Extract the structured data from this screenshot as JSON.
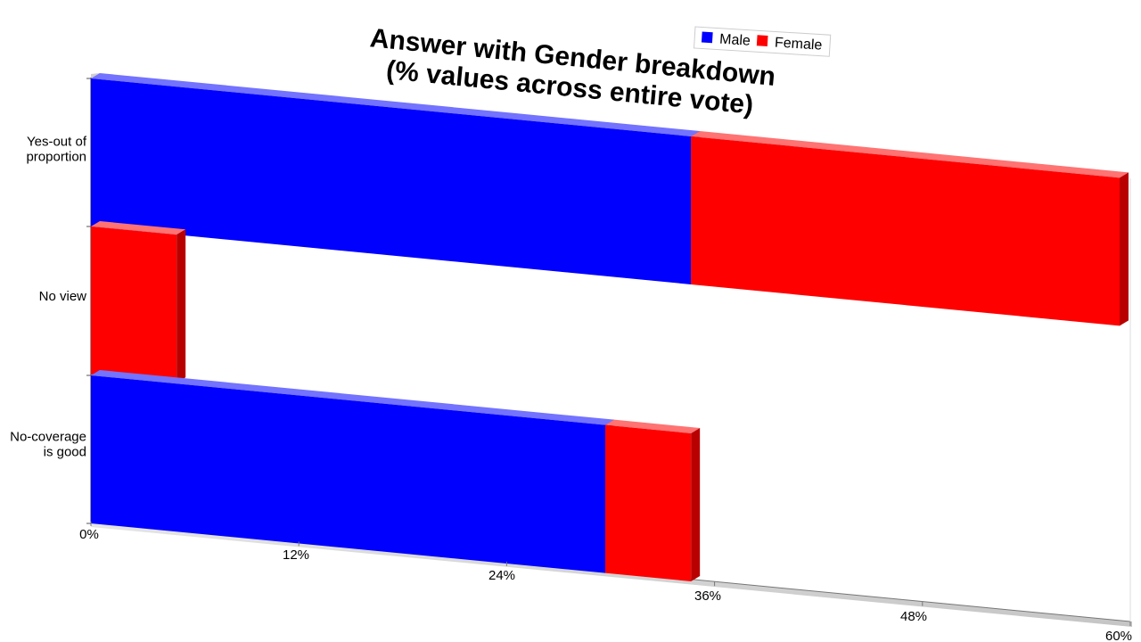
{
  "chart_data": {
    "type": "bar",
    "orientation": "horizontal",
    "stacked": true,
    "title": [
      "Answer with Gender breakdown",
      "(% values across entire vote)"
    ],
    "categories": [
      "Yes-out of proportion",
      "No view",
      "No-coverage is good"
    ],
    "category_label_lines": [
      [
        "Yes-out of",
        "proportion"
      ],
      [
        "No view"
      ],
      [
        "No-coverage",
        "is good"
      ]
    ],
    "series": [
      {
        "name": "Male",
        "color": "#0000ff",
        "values": [
          35,
          0,
          30
        ]
      },
      {
        "name": "Female",
        "color": "#ff0000",
        "values": [
          25,
          5,
          5
        ]
      }
    ],
    "x_ticks": [
      "0%",
      "12%",
      "24%",
      "36%",
      "48%",
      "60%"
    ],
    "xlim": [
      0,
      60
    ],
    "legend_placement": "top-right",
    "grid": false
  }
}
